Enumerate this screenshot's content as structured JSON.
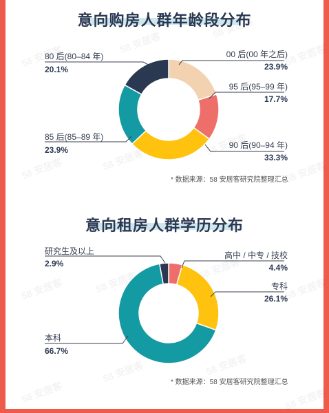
{
  "watermark": "58 安居客",
  "chart_data": [
    {
      "type": "pie",
      "variant": "donut",
      "title": "意向购房人群年龄段分布",
      "source": "* 数据来源：58 安居客研究院整理汇总",
      "slices": [
        {
          "label": "00 后(00 年之后)",
          "value": 23.9,
          "value_text": "23.9%",
          "color": "#f2d2b0"
        },
        {
          "label": "95 后(95–99 年)",
          "value": 17.7,
          "value_text": "17.7%",
          "color": "#ee6f6a"
        },
        {
          "label": "90 后(90–94 年)",
          "value": 33.3,
          "value_text": "33.3%",
          "color": "#ffc20e"
        },
        {
          "label": "85 后(85–89 年)",
          "value": 23.9,
          "value_text": "23.9%",
          "color": "#149aa2"
        },
        {
          "label": "80 后(80–84 年)",
          "value": 20.1,
          "value_text": "20.1%",
          "color": "#2b3852"
        }
      ]
    },
    {
      "type": "pie",
      "variant": "donut",
      "title": "意向租房人群学历分布",
      "source": "* 数据来源：58 安居客研究院整理汇总",
      "slices": [
        {
          "label": "高中 / 中专 / 技校",
          "value": 4.4,
          "value_text": "4.4%",
          "color": "#ee6f6a"
        },
        {
          "label": "专科",
          "value": 26.1,
          "value_text": "26.1%",
          "color": "#ffc20e"
        },
        {
          "label": "本科",
          "value": 66.7,
          "value_text": "66.7%",
          "color": "#149aa2"
        },
        {
          "label": "研究生及以上",
          "value": 2.9,
          "value_text": "2.9%",
          "color": "#2b3852"
        }
      ]
    }
  ]
}
